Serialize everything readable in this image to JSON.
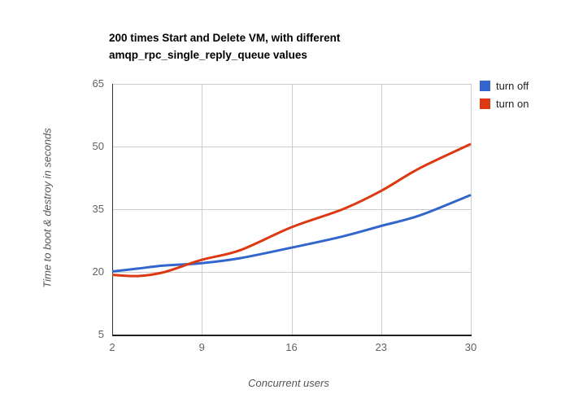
{
  "chart_data": {
    "type": "line",
    "title": "200 times Start and Delete VM, with different amqp_rpc_single_reply_queue values",
    "title_lines": [
      "200 times Start and Delete VM, with different",
      "amqp_rpc_single_reply_queue values"
    ],
    "xlabel": "Concurrent users",
    "ylabel": "Time to boot & destroy in seconds",
    "x": [
      2,
      4,
      6,
      9,
      12,
      16,
      20,
      23,
      26,
      30
    ],
    "series": [
      {
        "name": "turn off",
        "color": "#3366CC",
        "values": [
          20.1,
          20.8,
          21.5,
          22.1,
          23.3,
          25.8,
          28.5,
          31.0,
          33.5,
          38.4
        ]
      },
      {
        "name": "turn on",
        "color": "#DC3912",
        "values": [
          19.3,
          19.0,
          19.9,
          22.9,
          25.2,
          30.7,
          35.0,
          39.4,
          44.8,
          50.6
        ]
      }
    ],
    "xlim": [
      2,
      30
    ],
    "ylim": [
      5,
      65
    ],
    "x_tick_values": [
      2,
      9,
      16,
      23,
      30
    ],
    "y_tick_values": [
      5,
      20,
      35,
      50,
      65
    ],
    "grid": true,
    "legend_position": "right",
    "line_width": 3,
    "colors": {
      "grid": "#cccccc",
      "axis_y": "#333333",
      "axis_x": "#212121",
      "tick_text": "#616161",
      "axis_title_text": "#555555",
      "title_text": "#000000",
      "legend_text": "#222222",
      "background": "#ffffff"
    }
  }
}
